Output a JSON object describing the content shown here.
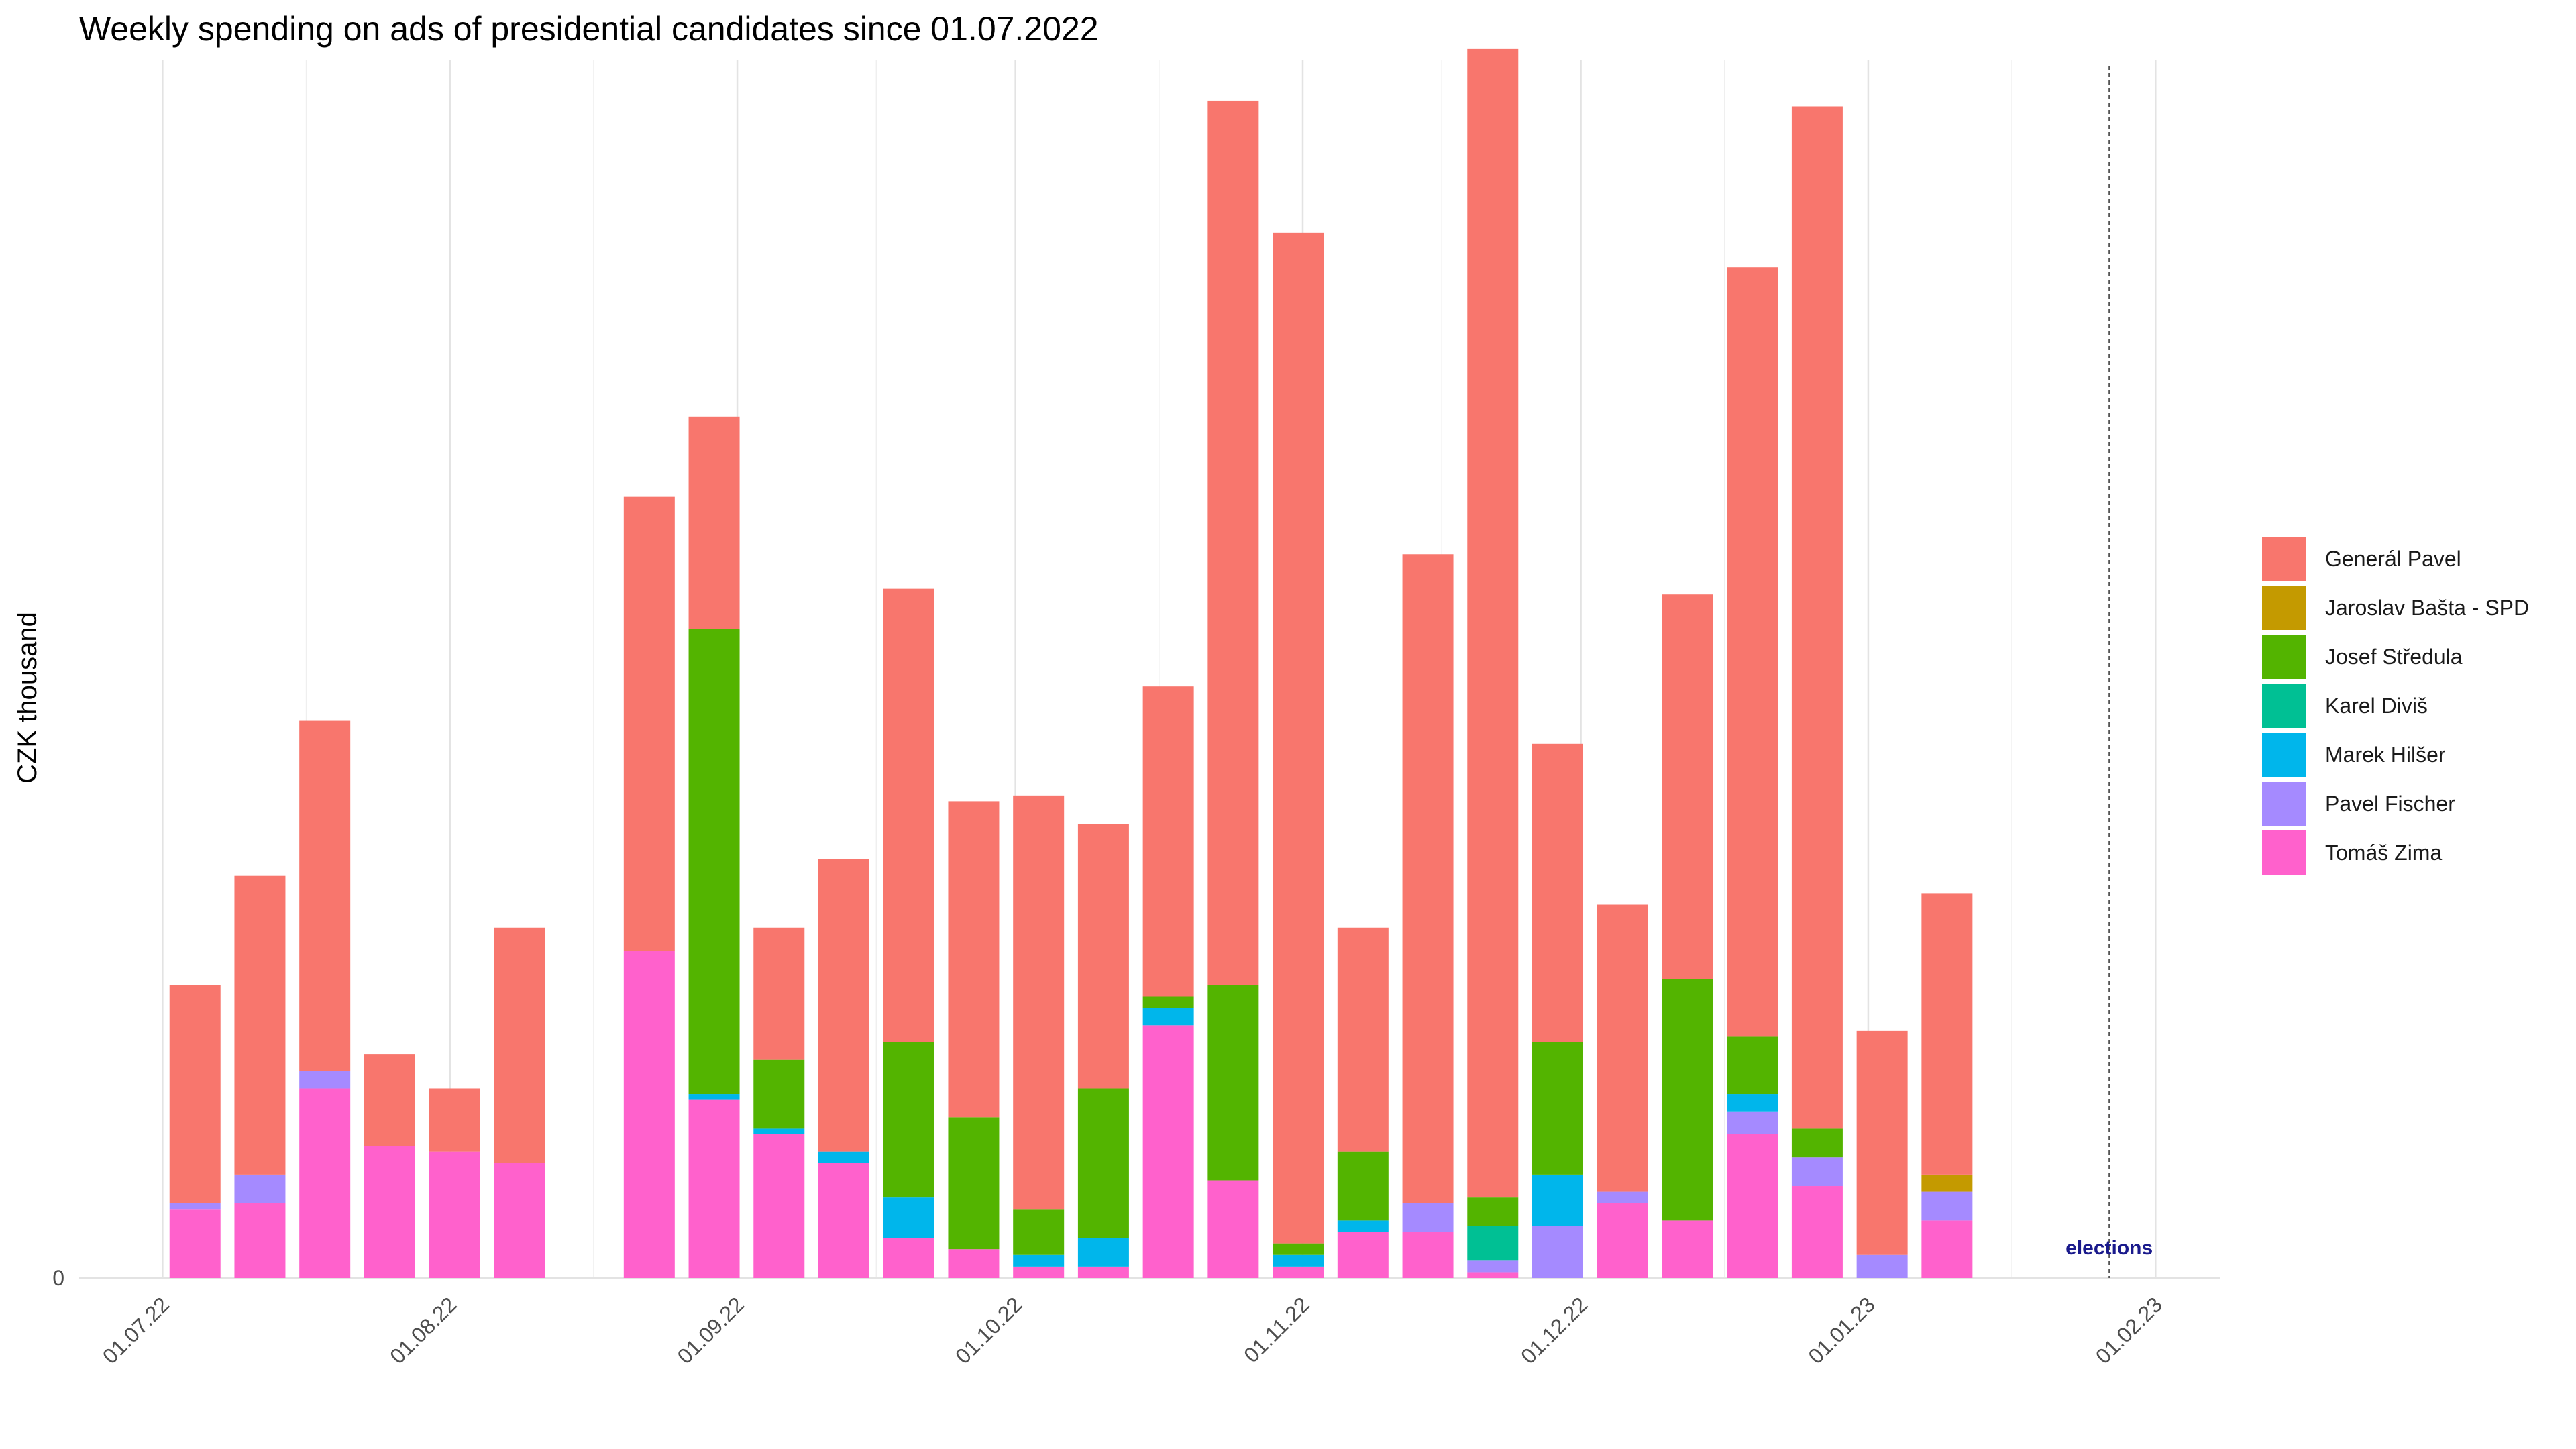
{
  "chart_data": {
    "type": "bar",
    "stacked": true,
    "title": "Weekly spending on ads of presidential candidates since 01.07.2022",
    "xlabel": "",
    "ylabel": "CZK thousand",
    "y_ticks": [
      0
    ],
    "x_ticks": [
      {
        "label": "01.07.22",
        "date": "2022-07-01"
      },
      {
        "label": "01.08.22",
        "date": "2022-08-01"
      },
      {
        "label": "01.09.22",
        "date": "2022-09-01"
      },
      {
        "label": "01.10.22",
        "date": "2022-10-01"
      },
      {
        "label": "01.11.22",
        "date": "2022-11-01"
      },
      {
        "label": "01.12.22",
        "date": "2022-12-01"
      },
      {
        "label": "01.01.23",
        "date": "2023-01-01"
      },
      {
        "label": "01.02.23",
        "date": "2023-02-01"
      }
    ],
    "x_range": [
      "2022-06-22",
      "2023-02-08"
    ],
    "y_range": [
      0,
      1060
    ],
    "grid": true,
    "legend_position": "right",
    "annotation": {
      "text": "elections",
      "date": "2023-01-27",
      "line_style": "dashed"
    },
    "series": [
      {
        "name": "Tomáš Zima",
        "color": "#FF61CC"
      },
      {
        "name": "Pavel Fischer",
        "color": "#A58AFF"
      },
      {
        "name": "Marek Hilšer",
        "color": "#00B6EB"
      },
      {
        "name": "Karel Diviš",
        "color": "#00C094"
      },
      {
        "name": "Josef Středula",
        "color": "#53B400"
      },
      {
        "name": "Jaroslav Bašta - SPD",
        "color": "#C49A00"
      },
      {
        "name": "Generál Pavel",
        "color": "#F8766D"
      }
    ],
    "legend_order": [
      "Generál Pavel",
      "Jaroslav Bašta - SPD",
      "Josef Středula",
      "Karel Diviš",
      "Marek Hilšer",
      "Pavel Fischer",
      "Tomáš Zima"
    ],
    "bars": [
      {
        "week": "2022-07-01",
        "values": [
          60,
          5,
          0,
          0,
          0,
          0,
          190
        ]
      },
      {
        "week": "2022-07-08",
        "values": [
          65,
          25,
          0,
          0,
          0,
          0,
          260
        ]
      },
      {
        "week": "2022-07-15",
        "values": [
          165,
          15,
          0,
          0,
          0,
          0,
          305
        ]
      },
      {
        "week": "2022-07-22",
        "values": [
          115,
          0,
          0,
          0,
          0,
          0,
          80
        ]
      },
      {
        "week": "2022-07-29",
        "values": [
          110,
          0,
          0,
          0,
          0,
          0,
          55
        ]
      },
      {
        "week": "2022-08-05",
        "values": [
          100,
          0,
          0,
          0,
          0,
          0,
          205
        ]
      },
      {
        "week": "2022-08-19",
        "values": [
          285,
          0,
          0,
          0,
          0,
          0,
          395
        ]
      },
      {
        "week": "2022-08-26",
        "values": [
          155,
          0,
          5,
          0,
          405,
          0,
          185
        ]
      },
      {
        "week": "2022-09-02",
        "values": [
          125,
          0,
          5,
          0,
          60,
          0,
          115
        ]
      },
      {
        "week": "2022-09-09",
        "values": [
          100,
          0,
          10,
          0,
          0,
          0,
          255
        ]
      },
      {
        "week": "2022-09-16",
        "values": [
          35,
          0,
          35,
          0,
          135,
          0,
          395
        ]
      },
      {
        "week": "2022-09-23",
        "values": [
          25,
          0,
          0,
          0,
          115,
          0,
          275
        ]
      },
      {
        "week": "2022-09-30",
        "values": [
          10,
          0,
          10,
          0,
          40,
          0,
          360
        ]
      },
      {
        "week": "2022-10-07",
        "values": [
          10,
          0,
          25,
          0,
          130,
          0,
          230
        ]
      },
      {
        "week": "2022-10-14",
        "values": [
          220,
          0,
          15,
          0,
          10,
          0,
          270
        ]
      },
      {
        "week": "2022-10-21",
        "values": [
          85,
          0,
          0,
          0,
          170,
          0,
          770
        ]
      },
      {
        "week": "2022-10-28",
        "values": [
          10,
          0,
          10,
          0,
          10,
          0,
          880
        ]
      },
      {
        "week": "2022-11-04",
        "values": [
          40,
          0,
          10,
          0,
          60,
          0,
          195
        ]
      },
      {
        "week": "2022-11-11",
        "values": [
          40,
          25,
          0,
          0,
          0,
          0,
          565
        ]
      },
      {
        "week": "2022-11-18",
        "values": [
          5,
          10,
          0,
          30,
          25,
          0,
          1000
        ]
      },
      {
        "week": "2022-11-25",
        "values": [
          0,
          45,
          45,
          0,
          115,
          0,
          260
        ]
      },
      {
        "week": "2022-12-02",
        "values": [
          65,
          10,
          0,
          0,
          0,
          0,
          250
        ]
      },
      {
        "week": "2022-12-09",
        "values": [
          50,
          0,
          0,
          0,
          210,
          0,
          335
        ]
      },
      {
        "week": "2022-12-16",
        "values": [
          125,
          20,
          15,
          0,
          50,
          0,
          670
        ]
      },
      {
        "week": "2022-12-23",
        "values": [
          80,
          25,
          0,
          0,
          25,
          0,
          890
        ]
      },
      {
        "week": "2022-12-30",
        "values": [
          0,
          20,
          0,
          0,
          0,
          0,
          195
        ]
      },
      {
        "week": "2023-01-06",
        "values": [
          50,
          25,
          0,
          0,
          0,
          15,
          245
        ]
      }
    ]
  }
}
